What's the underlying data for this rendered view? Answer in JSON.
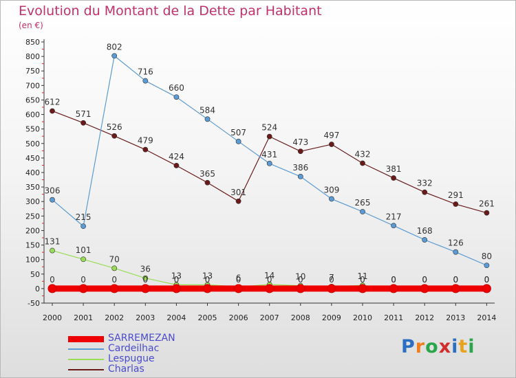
{
  "title": "Evolution du Montant de la Dette par Habitant",
  "unit": "(en €)",
  "logo": {
    "text": "Proxiti",
    "colors": [
      "#2b6fc2",
      "#f07f1a",
      "#2aa64a",
      "#d12d2d",
      "#2b6fc2",
      "#e9a21b",
      "#2aa64a"
    ]
  },
  "chart_data": {
    "type": "line",
    "title": "Evolution du Montant de la Dette par Habitant",
    "subtitle": "(en €)",
    "xlabel": "",
    "ylabel": "",
    "x": [
      "2000",
      "2001",
      "2002",
      "2003",
      "2004",
      "2005",
      "2006",
      "2007",
      "2008",
      "2009",
      "2010",
      "2011",
      "2012",
      "2013",
      "2014"
    ],
    "ylim": [
      -50,
      850
    ],
    "yticks": [
      -50,
      0,
      50,
      100,
      150,
      200,
      250,
      300,
      350,
      400,
      450,
      500,
      550,
      600,
      650,
      700,
      750,
      800,
      850
    ],
    "grid": false,
    "legend_position": "bottom-left",
    "series": [
      {
        "name": "SARREMEZAN",
        "color": "#ee0000",
        "values": [
          0,
          0,
          0,
          0,
          0,
          0,
          0,
          0,
          0,
          0,
          0,
          0,
          0,
          0,
          0
        ],
        "labels": [
          "0",
          "0",
          "0",
          "0",
          "0",
          "0",
          "0",
          "0",
          "0",
          "0",
          "0",
          "0",
          "0",
          "0",
          "0"
        ]
      },
      {
        "name": "Cardeilhac",
        "color": "#5b9bd5",
        "values": [
          306,
          215,
          802,
          716,
          660,
          584,
          507,
          431,
          386,
          309,
          265,
          217,
          168,
          126,
          80
        ],
        "labels": [
          "306",
          "215",
          "802",
          "716",
          "660",
          "584",
          "507",
          "431",
          "386",
          "309",
          "265",
          "217",
          "168",
          "126",
          "80"
        ]
      },
      {
        "name": "Lespugue",
        "color": "#99dd55",
        "values": [
          131,
          101,
          70,
          36,
          13,
          13,
          6,
          14,
          10,
          7,
          11,
          0,
          0,
          0,
          0
        ],
        "labels": [
          "131",
          "101",
          "70",
          "36",
          "13",
          "13",
          "6",
          "14",
          "10",
          "7",
          "11",
          "0",
          "0",
          "0",
          "0"
        ]
      },
      {
        "name": "Charlas",
        "color": "#6b1a1a",
        "values": [
          612,
          571,
          526,
          479,
          424,
          365,
          301,
          524,
          473,
          497,
          432,
          381,
          332,
          291,
          261
        ],
        "labels": [
          "612",
          "571",
          "526",
          "479",
          "424",
          "365",
          "301",
          "524",
          "473",
          "497",
          "432",
          "381",
          "332",
          "291",
          "261"
        ]
      }
    ]
  }
}
